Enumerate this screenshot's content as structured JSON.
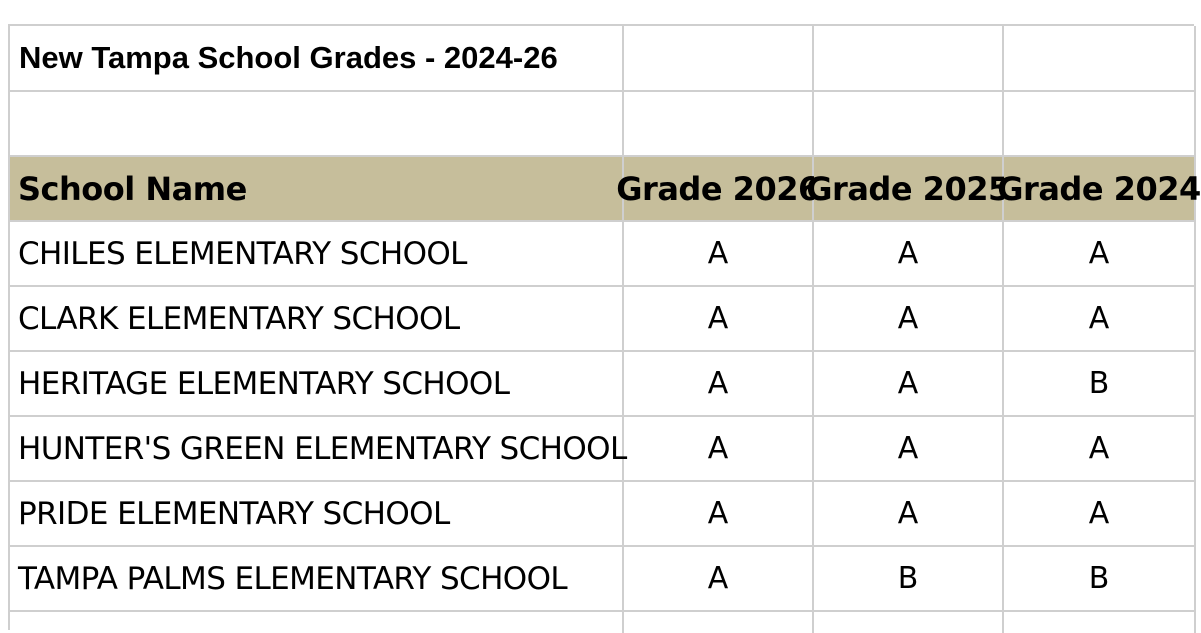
{
  "title": "New Tampa School Grades - 2024-26",
  "headers": {
    "school_name": "School Name",
    "grade_2026": "Grade 2026",
    "grade_2025": "Grade 2025",
    "grade_2024": "Grade 2024"
  },
  "header_bg_color": "#c6be9b",
  "rows": [
    {
      "school": "CHILES ELEMENTARY SCHOOL",
      "g2026": "A",
      "g2025": "A",
      "g2024": "A"
    },
    {
      "school": "CLARK ELEMENTARY SCHOOL",
      "g2026": "A",
      "g2025": "A",
      "g2024": "A"
    },
    {
      "school": "HERITAGE ELEMENTARY SCHOOL",
      "g2026": "A",
      "g2025": "A",
      "g2024": "B"
    },
    {
      "school": "HUNTER'S GREEN ELEMENTARY SCHOOL",
      "g2026": "A",
      "g2025": "A",
      "g2024": "A"
    },
    {
      "school": "PRIDE ELEMENTARY SCHOOL",
      "g2026": "A",
      "g2025": "A",
      "g2024": "A"
    },
    {
      "school": "TAMPA PALMS ELEMENTARY SCHOOL",
      "g2026": "A",
      "g2025": "B",
      "g2024": "B"
    }
  ]
}
